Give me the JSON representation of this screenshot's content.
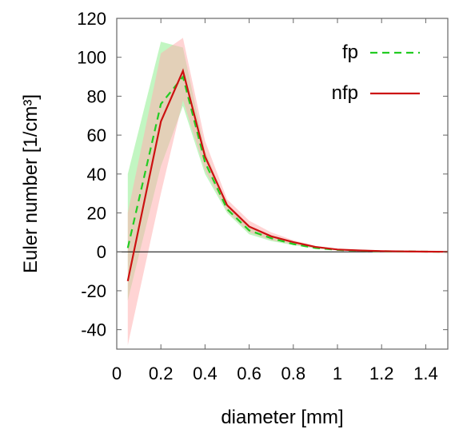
{
  "chart_data": {
    "type": "line",
    "xlabel": "diameter [mm]",
    "ylabel": "Euler number [1/cm³]",
    "xlim": [
      0,
      1.5
    ],
    "ylim": [
      -50,
      120
    ],
    "xticks": [
      0,
      0.2,
      0.4,
      0.6,
      0.8,
      1,
      1.2,
      1.4
    ],
    "xtick_labels": [
      "0",
      "0.2",
      "0.4",
      "0.6",
      "0.8",
      "1",
      "1.2",
      "1.4"
    ],
    "yticks": [
      -40,
      -20,
      0,
      20,
      40,
      60,
      80,
      100,
      120
    ],
    "ytick_labels": [
      "-40",
      "-20",
      "0",
      "20",
      "40",
      "60",
      "80",
      "100",
      "120"
    ],
    "zero_line": true,
    "grid": false,
    "legend_position": "top-right",
    "series": [
      {
        "name": "fp",
        "color": "#22cc22",
        "band_color": "#90ee90",
        "dash": "dashed",
        "x": [
          0.05,
          0.2,
          0.3,
          0.4,
          0.5,
          0.6,
          0.7,
          0.8,
          0.9,
          1.0,
          1.1,
          1.2,
          1.3,
          1.4,
          1.5
        ],
        "y": [
          2,
          76,
          90,
          46,
          22,
          11,
          7,
          4,
          2,
          1,
          0.6,
          0.3,
          0.2,
          0.1,
          0
        ],
        "lower": [
          -25,
          44,
          75,
          40,
          20,
          9,
          5.5,
          3.5,
          1.6,
          0.8,
          0.4,
          0.2,
          0.1,
          0,
          0
        ],
        "upper": [
          40,
          108,
          105,
          52,
          24,
          13,
          8.5,
          5,
          2.5,
          1.3,
          0.8,
          0.5,
          0.3,
          0.2,
          0.1
        ]
      },
      {
        "name": "nfp",
        "color": "#cc1111",
        "band_color": "#ffb0b0",
        "dash": "solid",
        "x": [
          0.05,
          0.2,
          0.3,
          0.4,
          0.5,
          0.6,
          0.7,
          0.8,
          0.9,
          1.0,
          1.1,
          1.2,
          1.3,
          1.4,
          1.5
        ],
        "y": [
          -15,
          67,
          93,
          49,
          24,
          13,
          8,
          5,
          2.5,
          1.2,
          0.7,
          0.4,
          0.2,
          0.1,
          0
        ],
        "lower": [
          -48,
          30,
          78,
          42,
          21,
          10,
          6,
          4,
          2,
          1,
          0.5,
          0.2,
          0.1,
          0,
          0
        ],
        "upper": [
          20,
          102,
          110,
          57,
          27,
          16,
          10,
          6,
          3,
          1.5,
          0.9,
          0.6,
          0.3,
          0.2,
          0.1
        ]
      }
    ]
  }
}
